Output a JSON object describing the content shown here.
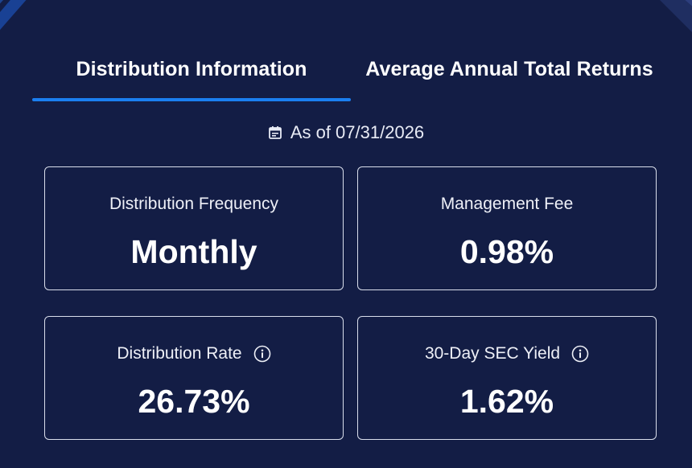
{
  "tabs": [
    {
      "label": "Distribution Information",
      "active": true
    },
    {
      "label": "Average Annual Total Returns",
      "active": false
    }
  ],
  "as_of": {
    "icon": "calendar-icon",
    "text": "As of 07/31/2026"
  },
  "cards": {
    "distribution_frequency": {
      "label": "Distribution Frequency",
      "value": "Monthly"
    },
    "management_fee": {
      "label": "Management Fee",
      "value": "0.98%"
    },
    "distribution_rate": {
      "label": "Distribution Rate",
      "value": "26.73%",
      "info_icon": "info-icon"
    },
    "sec_yield": {
      "label": "30-Day SEC Yield",
      "value": "1.62%",
      "info_icon": "info-icon"
    }
  },
  "colors": {
    "background": "#131d45",
    "active_tab_underline": "#1b7ff0",
    "card_border": "#d9deeb",
    "text": "#ffffff"
  }
}
